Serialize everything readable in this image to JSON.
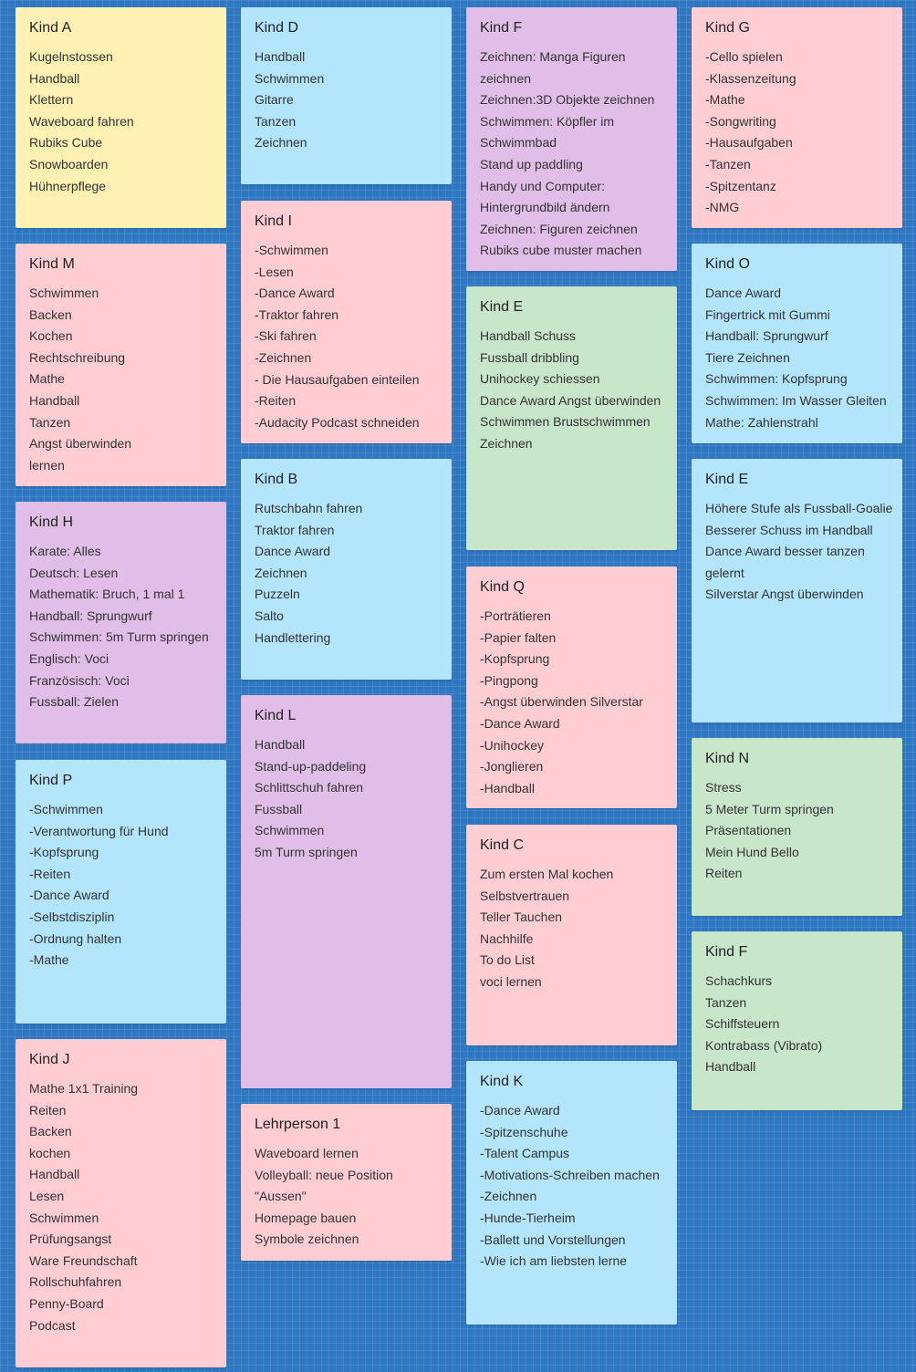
{
  "colors": {
    "yellow": "#fff0b3",
    "blue": "#b3e5fc",
    "pink": "#ffcdd2",
    "purple": "#e1bee7",
    "green": "#c8e6c9",
    "background": "#2e77c2"
  },
  "columns": [
    [
      {
        "title": "Kind A",
        "color": "yellow",
        "lines": [
          "Kugelnstossen",
          "Handball",
          "Klettern",
          "Waveboard fahren",
          "Rubiks Cube",
          "Snowboarden",
          "Hühnerpflege"
        ]
      },
      {
        "title": "Kind M",
        "color": "pink",
        "lines": [
          "Schwimmen",
          "Backen",
          "Kochen",
          "Rechtschreibung",
          "Mathe",
          "Handball",
          "Tanzen",
          "Angst überwinden",
          "lernen"
        ]
      },
      {
        "title": "Kind H",
        "color": "purple",
        "lines": [
          "Karate: Alles",
          "Deutsch: Lesen",
          " Mathematik:  Bruch, 1 mal 1",
          "Handball: Sprungwurf",
          "Schwimmen: 5m Turm springen",
          "Englisch: Voci",
          "Französisch: Voci",
          "Fussball: Zielen"
        ]
      },
      {
        "title": "Kind P",
        "color": "blue",
        "lines": [
          "-Schwimmen",
          "-Verantwortung für Hund",
          "-Kopfsprung",
          "-Reiten",
          "-Dance Award",
          "-Selbstdisziplin",
          "-Ordnung halten",
          "-Mathe"
        ]
      },
      {
        "title": "Kind J",
        "color": "pink",
        "lines": [
          "Mathe 1x1 Training",
          "Reiten",
          "Backen",
          "kochen",
          "Handball",
          "Lesen",
          "Schwimmen",
          "Prüfungsangst",
          "Ware Freundschaft",
          "Rollschuhfahren",
          "Penny-Board",
          "Podcast"
        ]
      }
    ],
    [
      {
        "title": "Kind D",
        "color": "blue",
        "lines": [
          "Handball",
          "Schwimmen",
          "Gitarre",
          "Tanzen",
          "Zeichnen"
        ]
      },
      {
        "title": "Kind I",
        "color": "pink",
        "lines": [
          "-Schwimmen",
          "-Lesen",
          "-Dance Award",
          "-Traktor fahren",
          "-Ski fahren",
          "-Zeichnen",
          "- Die Hausaufgaben einteilen",
          "-Reiten",
          "-Audacity Podcast schneiden"
        ]
      },
      {
        "title": "Kind B",
        "color": "blue",
        "lines": [
          "Rutschbahn fahren",
          "Traktor fahren",
          "Dance Award",
          "Zeichnen",
          "Puzzeln",
          "Salto",
          "Handlettering"
        ]
      },
      {
        "title": "Kind L",
        "color": "purple",
        "lines": [
          "Handball",
          "Stand-up-paddeling",
          "Schlittschuh fahren",
          "Fussball",
          "Schwimmen",
          "5m Turm springen"
        ]
      },
      {
        "title": "Lehrperson 1",
        "color": "pink",
        "lines": [
          "Waveboard lernen",
          "Volleyball: neue Position",
          "\"Aussen\"",
          "Homepage bauen",
          "Symbole zeichnen"
        ]
      }
    ],
    [
      {
        "title": "Kind F",
        "color": "purple",
        "lines": [
          "Zeichnen: Manga Figuren",
          "zeichnen",
          "Zeichnen:3D Objekte zeichnen",
          "Schwimmen: Köpfler im",
          "Schwimmbad",
          "Stand up paddling",
          "Handy und Computer:",
          "Hintergrundbild ändern",
          "Zeichnen: Figuren zeichnen",
          "Rubiks cube muster machen"
        ]
      },
      {
        "title": "Kind E",
        "color": "green",
        "lines": [
          "Handball Schuss",
          "Fussball dribbling",
          "Unihockey schiessen",
          "Dance Award Angst überwinden",
          "Schwimmen Brustschwimmen",
          "Zeichnen"
        ]
      },
      {
        "title": "Kind Q",
        "color": "pink",
        "lines": [
          "-Porträtieren",
          "-Papier falten",
          "-Kopfsprung",
          "-Pingpong",
          "-Angst überwinden Silverstar",
          "-Dance Award",
          "-Unihockey",
          "-Jonglieren",
          "-Handball"
        ]
      },
      {
        "title": "Kind C",
        "color": "pink",
        "lines": [
          "Zum ersten Mal kochen",
          "Selbstvertrauen",
          "Teller Tauchen",
          "Nachhilfe",
          "To do List",
          "voci lernen"
        ]
      },
      {
        "title": "Kind K",
        "color": "blue",
        "lines": [
          "-Dance Award",
          "-Spitzenschuhe",
          "-Talent Campus",
          "-Motivations-Schreiben machen",
          "-Zeichnen",
          "-Hunde-Tierheim",
          "-Ballett und Vorstellungen",
          "-Wie ich am liebsten lerne"
        ]
      }
    ],
    [
      {
        "title": "Kind G",
        "color": "pink",
        "lines": [
          "-Cello spielen",
          "-Klassenzeitung",
          "-Mathe",
          "-Songwriting",
          "-Hausaufgaben",
          "-Tanzen",
          "-Spitzentanz",
          "-NMG"
        ]
      },
      {
        "title": "Kind O",
        "color": "blue",
        "lines": [
          "Dance Award",
          "Fingertrick mit Gummi",
          "Handball: Sprungwurf",
          "Tiere Zeichnen",
          "Schwimmen: Kopfsprung",
          "Schwimmen: Im Wasser Gleiten",
          "Mathe: Zahlenstrahl"
        ]
      },
      {
        "title": "Kind E",
        "color": "blue",
        "lines": [
          "Höhere Stufe als Fussball-Goalie",
          "Besserer Schuss im Handball",
          "Dance Award besser tanzen",
          "gelernt",
          "Silverstar Angst überwinden"
        ]
      },
      {
        "title": "Kind N",
        "color": "green",
        "lines": [
          "Stress",
          "5 Meter Turm springen",
          "Präsentationen",
          "Mein Hund Bello",
          "Reiten"
        ]
      },
      {
        "title": "Kind F",
        "color": "green",
        "lines": [
          "Schachkurs",
          "Tanzen",
          "Schiffsteuern",
          "Kontrabass (Vibrato)",
          "Handball"
        ]
      }
    ]
  ]
}
